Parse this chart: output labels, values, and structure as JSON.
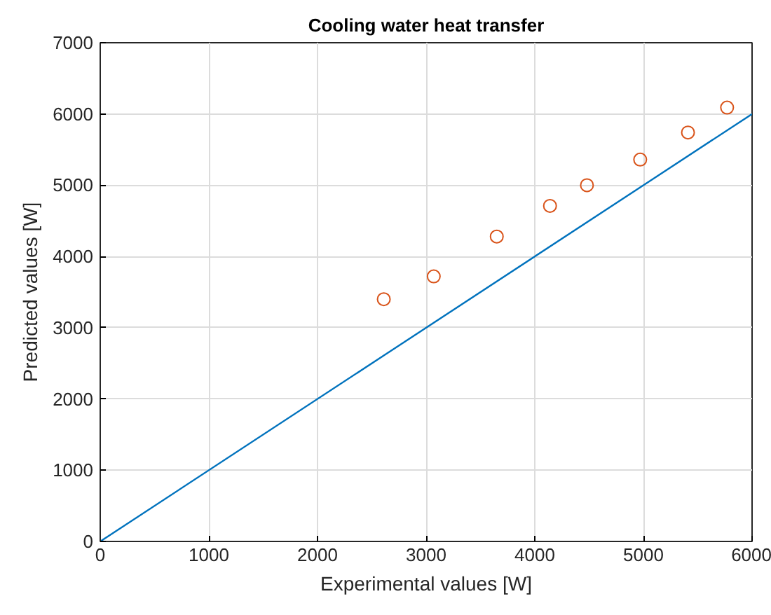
{
  "chart_data": {
    "type": "scatter",
    "title": "Cooling water heat transfer",
    "xlabel": "Experimental values [W]",
    "ylabel": "Predicted values [W]",
    "xlim": [
      0,
      6000
    ],
    "ylim": [
      0,
      7000
    ],
    "xticks": [
      0,
      1000,
      2000,
      3000,
      4000,
      5000,
      6000
    ],
    "yticks": [
      0,
      1000,
      2000,
      3000,
      4000,
      5000,
      6000,
      7000
    ],
    "grid": true,
    "series": [
      {
        "type": "line",
        "color": "#0072bd",
        "x": [
          0,
          6000
        ],
        "values": [
          0,
          6000
        ],
        "marker": "none",
        "line_style": "solid"
      },
      {
        "color": "#d95319",
        "marker": "circle",
        "x": [
          2610,
          3070,
          3650,
          4140,
          4480,
          4970,
          5410,
          5770
        ],
        "values": [
          3400,
          3720,
          4280,
          4710,
          5000,
          5360,
          5740,
          6090
        ]
      }
    ]
  }
}
